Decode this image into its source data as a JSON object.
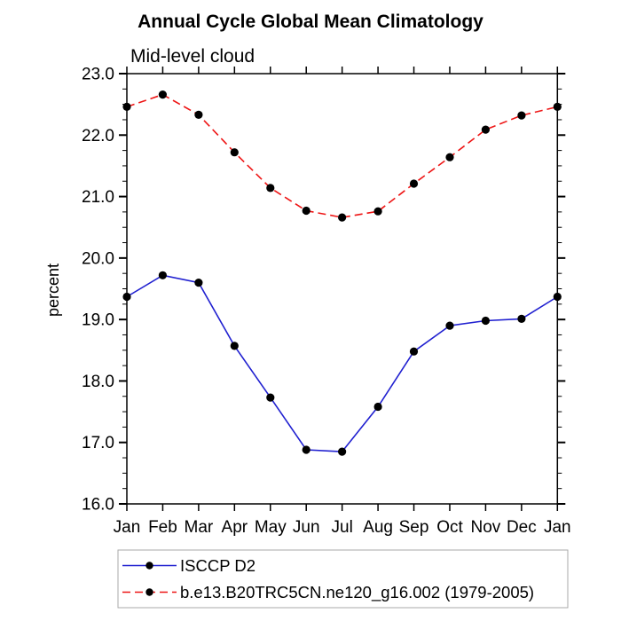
{
  "title": "Annual Cycle Global Mean Climatology",
  "subtitle": "Mid-level cloud",
  "ylabel": "percent",
  "colors": {
    "axis": "#000000",
    "marker": "#000000",
    "legend_border": "#a9a9a9",
    "series_blue": "#2020d0",
    "series_red": "#ee1515"
  },
  "chart_data": {
    "type": "line",
    "title": "Annual Cycle Global Mean Climatology",
    "subtitle": "Mid-level cloud",
    "xlabel": "",
    "ylabel": "percent",
    "categories": [
      "Jan",
      "Feb",
      "Mar",
      "Apr",
      "May",
      "Jun",
      "Jul",
      "Aug",
      "Sep",
      "Oct",
      "Nov",
      "Dec",
      "Jan"
    ],
    "series": [
      {
        "name": "ISCCP D2",
        "color": "#2020d0",
        "linestyle": "solid",
        "marker": "filled-circle",
        "marker_color": "#000000",
        "values": [
          19.37,
          19.72,
          19.6,
          18.57,
          17.73,
          16.88,
          16.85,
          17.58,
          18.48,
          18.9,
          18.98,
          19.01,
          19.37
        ]
      },
      {
        "name": "b.e13.B20TRC5CN.ne120_g16.002 (1979-2005)",
        "color": "#ee1515",
        "linestyle": "dashed",
        "marker": "filled-circle",
        "marker_color": "#000000",
        "values": [
          22.46,
          22.66,
          22.33,
          21.72,
          21.14,
          20.77,
          20.66,
          20.76,
          21.21,
          21.64,
          22.09,
          22.32,
          22.46
        ]
      }
    ],
    "ylim": [
      16.0,
      23.0
    ],
    "ytick_step": 1.0,
    "yminor_step": 0.25,
    "ytick_labels": [
      "16.0",
      "17.0",
      "18.0",
      "19.0",
      "20.0",
      "21.0",
      "22.0",
      "23.0"
    ],
    "grid": false,
    "legend_position": "below-plot-left",
    "frame": "box-all-sides"
  }
}
